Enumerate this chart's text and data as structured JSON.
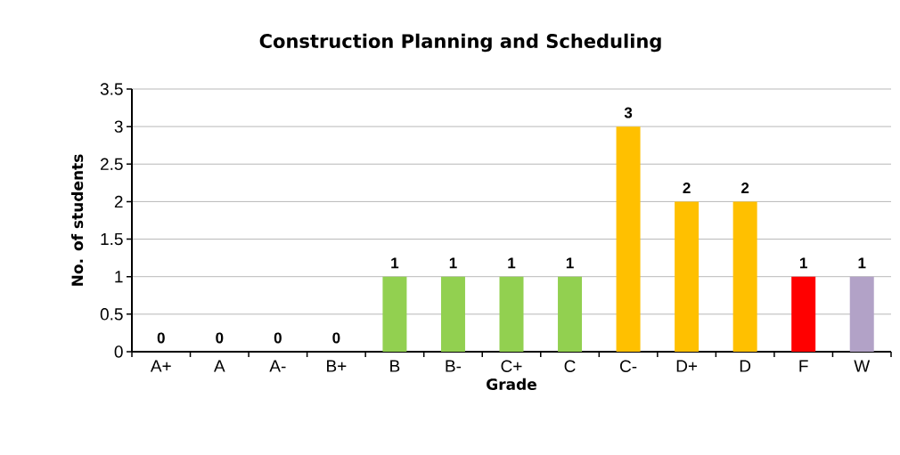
{
  "chart_data": {
    "type": "bar",
    "title": "Construction Planning and Scheduling",
    "xlabel": "Grade",
    "ylabel": "No. of students",
    "categories": [
      "A+",
      "A",
      "A-",
      "B+",
      "B",
      "B-",
      "C+",
      "C",
      "C-",
      "D+",
      "D",
      "F",
      "W"
    ],
    "values": [
      0,
      0,
      0,
      0,
      1,
      1,
      1,
      1,
      3,
      2,
      2,
      1,
      1
    ],
    "colors": [
      "#92d050",
      "#92d050",
      "#92d050",
      "#92d050",
      "#92d050",
      "#92d050",
      "#92d050",
      "#92d050",
      "#ffc000",
      "#ffc000",
      "#ffc000",
      "#ff0000",
      "#b2a2c7"
    ],
    "ylim": [
      0,
      3.5
    ],
    "yticks": [
      0,
      0.5,
      1,
      1.5,
      2,
      2.5,
      3,
      3.5
    ],
    "grid": "y",
    "data_labels": true
  }
}
